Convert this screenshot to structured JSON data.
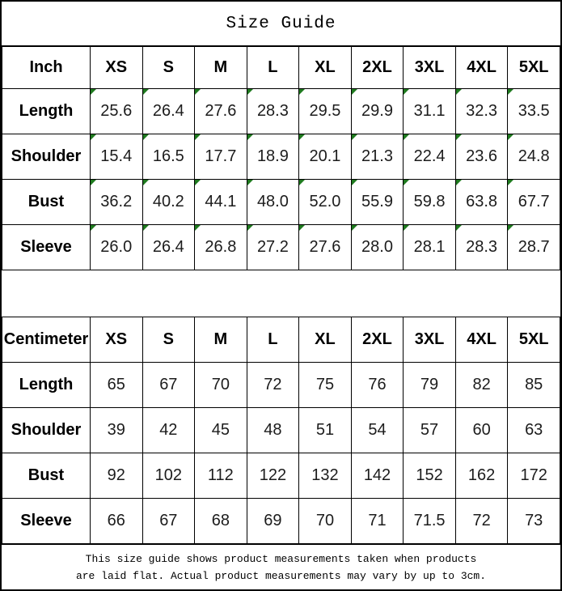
{
  "title": "Size Guide",
  "colors": {
    "background": "#ffffff",
    "border": "#000000",
    "text": "#000000",
    "cell_marker_green": "#1f7a1f"
  },
  "tables": [
    {
      "unit_label": "Inch",
      "columns": [
        "XS",
        "S",
        "M",
        "L",
        "XL",
        "2XL",
        "3XL",
        "4XL",
        "5XL"
      ],
      "rows": [
        {
          "label": "Length",
          "values": [
            "25.6",
            "26.4",
            "27.6",
            "28.3",
            "29.5",
            "29.9",
            "31.1",
            "32.3",
            "33.5"
          ]
        },
        {
          "label": "Shoulder",
          "values": [
            "15.4",
            "16.5",
            "17.7",
            "18.9",
            "20.1",
            "21.3",
            "22.4",
            "23.6",
            "24.8"
          ]
        },
        {
          "label": "Bust",
          "values": [
            "36.2",
            "40.2",
            "44.1",
            "48.0",
            "52.0",
            "55.9",
            "59.8",
            "63.8",
            "67.7"
          ]
        },
        {
          "label": "Sleeve",
          "values": [
            "26.0",
            "26.4",
            "26.8",
            "27.2",
            "27.6",
            "28.0",
            "28.1",
            "28.3",
            "28.7"
          ]
        }
      ],
      "has_cell_markers": true
    },
    {
      "unit_label": "Centimeter",
      "columns": [
        "XS",
        "S",
        "M",
        "L",
        "XL",
        "2XL",
        "3XL",
        "4XL",
        "5XL"
      ],
      "rows": [
        {
          "label": "Length",
          "values": [
            "65",
            "67",
            "70",
            "72",
            "75",
            "76",
            "79",
            "82",
            "85"
          ]
        },
        {
          "label": "Shoulder",
          "values": [
            "39",
            "42",
            "45",
            "48",
            "51",
            "54",
            "57",
            "60",
            "63"
          ]
        },
        {
          "label": "Bust",
          "values": [
            "92",
            "102",
            "112",
            "122",
            "132",
            "142",
            "152",
            "162",
            "172"
          ]
        },
        {
          "label": "Sleeve",
          "values": [
            "66",
            "67",
            "68",
            "69",
            "70",
            "71",
            "71.5",
            "72",
            "73"
          ]
        }
      ],
      "has_cell_markers": false
    }
  ],
  "footer": {
    "line1": "This size guide shows product measurements taken when products",
    "line2": "are laid flat. Actual product measurements may vary by up to 3cm."
  }
}
